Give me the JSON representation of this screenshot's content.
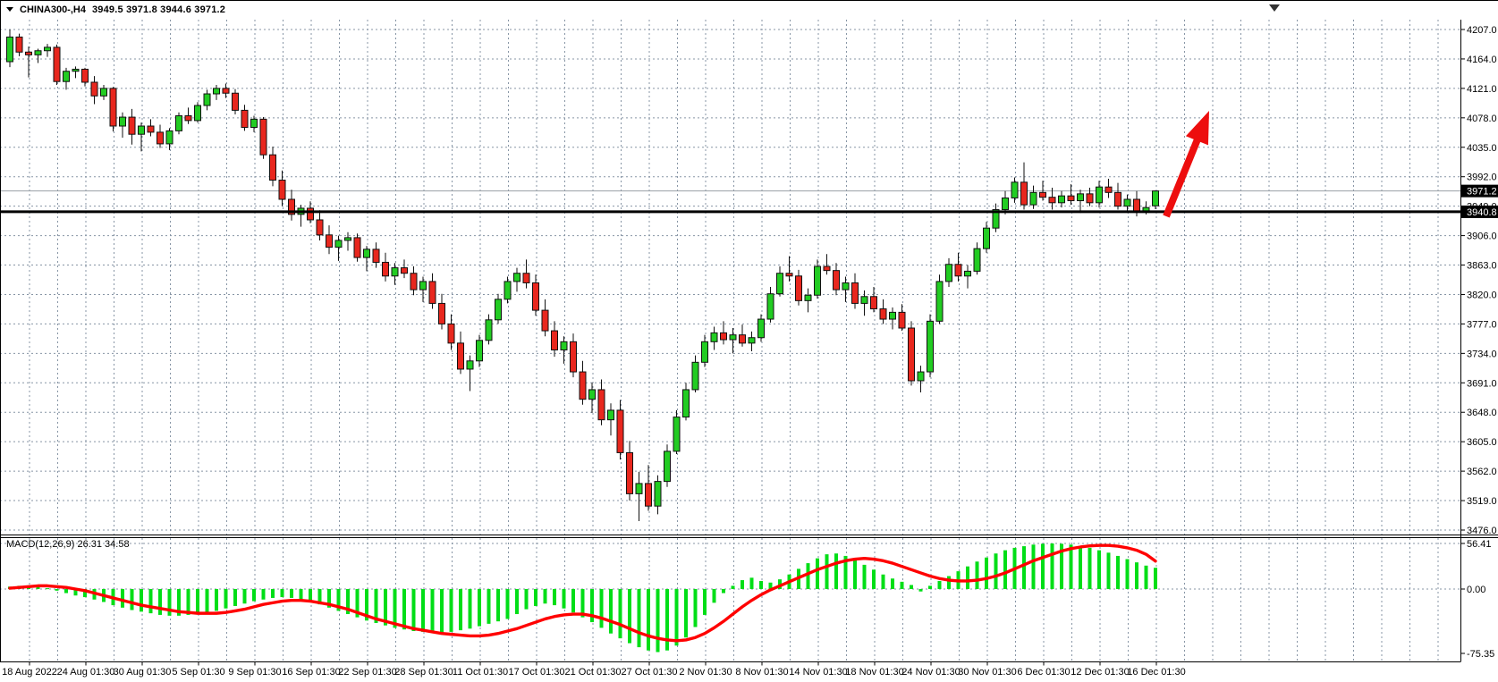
{
  "title": {
    "symbol_period": "CHINA300-,H4",
    "ohlc": "3949.5 3971.8 3944.6 3971.2"
  },
  "colors": {
    "background": "#ffffff",
    "grid": "#8795A5",
    "frame": "#000000",
    "candle_up": "#22CC22",
    "candle_down": "#E8271E",
    "candle_border": "#111111",
    "macd_histogram": "#00DE17",
    "macd_signal": "#FF0000",
    "current_price_line": "#9aa0a6",
    "hline": "#000000",
    "badge_bg": "#000000",
    "badge_text": "#ffffff",
    "label_text": "#000000",
    "arrow": "#ED0E0E"
  },
  "chart_data": {
    "type": "candlestick",
    "symbol": "CHINA300-",
    "timeframe": "H4",
    "current_bar": {
      "open": 3949.5,
      "high": 3971.8,
      "low": 3944.6,
      "close": 3971.2
    },
    "current_price": 3971.2,
    "horizontal_line_level": 3940.8,
    "price_axis": {
      "range": [
        3476.0,
        4207.0
      ],
      "ticks": [
        "4207.0",
        "4164.0",
        "4121.0",
        "4078.0",
        "4035.0",
        "3992.0",
        "3949.0",
        "3906.0",
        "3863.0",
        "3820.0",
        "3777.0",
        "3734.0",
        "3691.0",
        "3648.0",
        "3605.0",
        "3562.0",
        "3519.0",
        "3476.0"
      ],
      "badges": [
        "3971.2",
        "3940.8"
      ]
    },
    "x_axis": {
      "labels": [
        "18 Aug 2022",
        "24 Aug 01:30",
        "30 Aug 01:30",
        "5 Sep 01:30",
        "9 Sep 01:30",
        "16 Sep 01:30",
        "22 Sep 01:30",
        "28 Sep 01:30",
        "11 Oct 01:30",
        "17 Oct 01:30",
        "21 Oct 01:30",
        "27 Oct 01:30",
        "2 Nov 01:30",
        "8 Nov 01:30",
        "14 Nov 01:30",
        "18 Nov 01:30",
        "24 Nov 01:30",
        "30 Nov 01:30",
        "6 Dec 01:30",
        "12 Dec 01:30",
        "16 Dec 01:30"
      ]
    },
    "candles": [
      [
        4160,
        4207,
        4152,
        4196
      ],
      [
        4196,
        4201,
        4168,
        4174
      ],
      [
        4174,
        4182,
        4137,
        4170
      ],
      [
        4170,
        4179,
        4158,
        4176
      ],
      [
        4176,
        4186,
        4167,
        4181
      ],
      [
        4181,
        4185,
        4126,
        4131
      ],
      [
        4131,
        4151,
        4119,
        4146
      ],
      [
        4146,
        4153,
        4136,
        4149
      ],
      [
        4149,
        4151,
        4124,
        4130
      ],
      [
        4130,
        4139,
        4098,
        4110
      ],
      [
        4110,
        4126,
        4104,
        4121
      ],
      [
        4121,
        4123,
        4058,
        4066
      ],
      [
        4066,
        4086,
        4049,
        4079
      ],
      [
        4079,
        4091,
        4039,
        4054
      ],
      [
        4054,
        4071,
        4029,
        4066
      ],
      [
        4066,
        4076,
        4051,
        4057
      ],
      [
        4057,
        4068,
        4034,
        4040
      ],
      [
        4040,
        4063,
        4031,
        4059
      ],
      [
        4059,
        4086,
        4054,
        4081
      ],
      [
        4081,
        4093,
        4069,
        4074
      ],
      [
        4074,
        4101,
        4071,
        4096
      ],
      [
        4096,
        4119,
        4089,
        4113
      ],
      [
        4113,
        4126,
        4104,
        4121
      ],
      [
        4121,
        4128,
        4107,
        4114
      ],
      [
        4114,
        4120,
        4083,
        4089
      ],
      [
        4089,
        4097,
        4059,
        4064
      ],
      [
        4064,
        4081,
        4057,
        4076
      ],
      [
        4076,
        4079,
        4018,
        4024
      ],
      [
        4024,
        4036,
        3978,
        3987
      ],
      [
        3987,
        4001,
        3949,
        3959
      ],
      [
        3959,
        3973,
        3928,
        3937
      ],
      [
        3937,
        3951,
        3919,
        3946
      ],
      [
        3946,
        3956,
        3924,
        3929
      ],
      [
        3929,
        3943,
        3899,
        3907
      ],
      [
        3907,
        3921,
        3879,
        3889
      ],
      [
        3889,
        3906,
        3869,
        3899
      ],
      [
        3899,
        3911,
        3884,
        3903
      ],
      [
        3903,
        3909,
        3868,
        3874
      ],
      [
        3874,
        3891,
        3854,
        3886
      ],
      [
        3886,
        3896,
        3859,
        3867
      ],
      [
        3867,
        3881,
        3839,
        3847
      ],
      [
        3847,
        3866,
        3834,
        3859
      ],
      [
        3859,
        3871,
        3844,
        3851
      ],
      [
        3851,
        3861,
        3819,
        3827
      ],
      [
        3827,
        3846,
        3809,
        3839
      ],
      [
        3839,
        3851,
        3799,
        3807
      ],
      [
        3807,
        3821,
        3769,
        3777
      ],
      [
        3777,
        3791,
        3739,
        3749
      ],
      [
        3749,
        3766,
        3704,
        3711
      ],
      [
        3711,
        3731,
        3679,
        3723
      ],
      [
        3723,
        3761,
        3714,
        3753
      ],
      [
        3753,
        3791,
        3747,
        3783
      ],
      [
        3783,
        3821,
        3777,
        3813
      ],
      [
        3813,
        3846,
        3807,
        3839
      ],
      [
        3839,
        3859,
        3824,
        3851
      ],
      [
        3851,
        3871,
        3829,
        3837
      ],
      [
        3837,
        3849,
        3789,
        3797
      ],
      [
        3797,
        3813,
        3759,
        3767
      ],
      [
        3767,
        3781,
        3729,
        3739
      ],
      [
        3739,
        3759,
        3719,
        3751
      ],
      [
        3751,
        3763,
        3699,
        3707
      ],
      [
        3707,
        3723,
        3659,
        3667
      ],
      [
        3667,
        3691,
        3647,
        3681
      ],
      [
        3681,
        3696,
        3629,
        3637
      ],
      [
        3637,
        3661,
        3614,
        3651
      ],
      [
        3651,
        3666,
        3579,
        3589
      ],
      [
        3589,
        3606,
        3519,
        3529
      ],
      [
        3529,
        3561,
        3489,
        3544
      ],
      [
        3544,
        3571,
        3504,
        3511
      ],
      [
        3511,
        3556,
        3499,
        3547
      ],
      [
        3547,
        3601,
        3539,
        3591
      ],
      [
        3591,
        3651,
        3587,
        3641
      ],
      [
        3641,
        3691,
        3636,
        3681
      ],
      [
        3681,
        3731,
        3677,
        3721
      ],
      [
        3721,
        3761,
        3714,
        3751
      ],
      [
        3751,
        3773,
        3739,
        3764
      ],
      [
        3764,
        3781,
        3747,
        3754
      ],
      [
        3754,
        3771,
        3734,
        3761
      ],
      [
        3761,
        3776,
        3744,
        3749
      ],
      [
        3749,
        3766,
        3737,
        3757
      ],
      [
        3757,
        3791,
        3751,
        3784
      ],
      [
        3784,
        3831,
        3779,
        3821
      ],
      [
        3821,
        3861,
        3817,
        3851
      ],
      [
        3851,
        3876,
        3839,
        3847
      ],
      [
        3847,
        3856,
        3804,
        3811
      ],
      [
        3811,
        3829,
        3794,
        3819
      ],
      [
        3819,
        3871,
        3814,
        3861
      ],
      [
        3861,
        3879,
        3849,
        3855
      ],
      [
        3855,
        3866,
        3819,
        3827
      ],
      [
        3827,
        3846,
        3809,
        3837
      ],
      [
        3837,
        3851,
        3799,
        3807
      ],
      [
        3807,
        3826,
        3789,
        3817
      ],
      [
        3817,
        3831,
        3794,
        3799
      ],
      [
        3799,
        3813,
        3777,
        3784
      ],
      [
        3784,
        3801,
        3769,
        3794
      ],
      [
        3794,
        3806,
        3767,
        3771
      ],
      [
        3771,
        3781,
        3687,
        3694
      ],
      [
        3694,
        3716,
        3677,
        3707
      ],
      [
        3707,
        3791,
        3699,
        3781
      ],
      [
        3781,
        3849,
        3777,
        3839
      ],
      [
        3839,
        3873,
        3831,
        3864
      ],
      [
        3864,
        3881,
        3839,
        3847
      ],
      [
        3847,
        3863,
        3829,
        3854
      ],
      [
        3854,
        3896,
        3849,
        3887
      ],
      [
        3887,
        3926,
        3881,
        3917
      ],
      [
        3917,
        3953,
        3911,
        3944
      ],
      [
        3944,
        3971,
        3937,
        3961
      ],
      [
        3961,
        3991,
        3954,
        3984
      ],
      [
        3984,
        4013,
        3944,
        3951
      ],
      [
        3951,
        3979,
        3945,
        3969
      ],
      [
        3969,
        3986,
        3957,
        3962
      ],
      [
        3962,
        3976,
        3944,
        3954
      ],
      [
        3954,
        3971,
        3947,
        3964
      ],
      [
        3964,
        3981,
        3951,
        3957
      ],
      [
        3957,
        3973,
        3939,
        3967
      ],
      [
        3967,
        3976,
        3949,
        3954
      ],
      [
        3954,
        3986,
        3947,
        3977
      ],
      [
        3977,
        3989,
        3961,
        3969
      ],
      [
        3969,
        3983,
        3944,
        3949
      ],
      [
        3949,
        3966,
        3939,
        3959
      ],
      [
        3959,
        3971,
        3934,
        3941
      ],
      [
        3941,
        3956,
        3937,
        3947
      ],
      [
        3949.5,
        3971.8,
        3944.6,
        3971.2
      ]
    ],
    "macd": {
      "label": "MACD(12,26,9) 26.31 34.58",
      "params": "12,26,9",
      "main_value": 26.31,
      "signal_value": 34.58,
      "axis_ticks": [
        "56.41",
        "0.00",
        "-75.35"
      ],
      "main": [
        3,
        4,
        4,
        3,
        1,
        -2,
        -5,
        -8,
        -10,
        -13,
        -16,
        -20,
        -23,
        -26,
        -28,
        -30,
        -32,
        -33,
        -33,
        -32,
        -31,
        -29,
        -27,
        -24,
        -21,
        -18,
        -15,
        -13,
        -11,
        -10,
        -11,
        -13,
        -16,
        -19,
        -23,
        -27,
        -31,
        -35,
        -39,
        -42,
        -45,
        -48,
        -50,
        -52,
        -53,
        -54,
        -54,
        -53,
        -51,
        -49,
        -46,
        -43,
        -40,
        -37,
        -31,
        -25,
        -21,
        -18,
        -20,
        -24,
        -29,
        -35,
        -41,
        -48,
        -55,
        -61,
        -67,
        -72,
        -76,
        -78,
        -76,
        -70,
        -60,
        -47,
        -32,
        -17,
        -5,
        4,
        11,
        14,
        10,
        8,
        12,
        18,
        25,
        32,
        38,
        43,
        44,
        41,
        36,
        30,
        24,
        18,
        13,
        9,
        5,
        -3,
        4,
        10,
        16,
        22,
        28,
        34,
        39,
        44,
        48,
        51,
        53,
        55,
        56,
        56.4,
        56,
        55,
        53,
        51,
        48,
        45,
        41,
        37,
        33,
        29,
        26.31
      ],
      "signal": [
        1,
        2,
        3,
        4,
        4,
        3,
        2,
        0,
        -2,
        -5,
        -8,
        -11,
        -14,
        -17,
        -20,
        -22,
        -24,
        -26,
        -28,
        -29,
        -30,
        -30,
        -30,
        -29,
        -27,
        -25,
        -22,
        -19,
        -17,
        -15,
        -14,
        -14,
        -15,
        -17,
        -19,
        -22,
        -25,
        -29,
        -33,
        -37,
        -40,
        -43,
        -46,
        -49,
        -51,
        -53,
        -55,
        -56,
        -57,
        -58,
        -58,
        -57,
        -55,
        -52,
        -49,
        -45,
        -41,
        -37,
        -34,
        -32,
        -31,
        -31,
        -33,
        -36,
        -40,
        -44,
        -49,
        -54,
        -58,
        -61,
        -63,
        -64,
        -63,
        -60,
        -55,
        -48,
        -40,
        -31,
        -22,
        -14,
        -7,
        -1,
        4,
        9,
        14,
        19,
        24,
        28,
        32,
        35,
        37,
        38,
        37,
        35,
        32,
        28,
        24,
        20,
        16,
        13,
        11,
        10,
        10,
        11,
        13,
        16,
        20,
        25,
        30,
        35,
        39,
        43,
        47,
        50,
        52,
        53.5,
        54,
        54,
        53,
        51,
        48,
        43,
        34.58
      ]
    },
    "annotations": {
      "arrow": {
        "from": [
          1304,
          242
        ],
        "to": [
          1352,
          124
        ],
        "color": "#ED0E0E"
      }
    }
  }
}
